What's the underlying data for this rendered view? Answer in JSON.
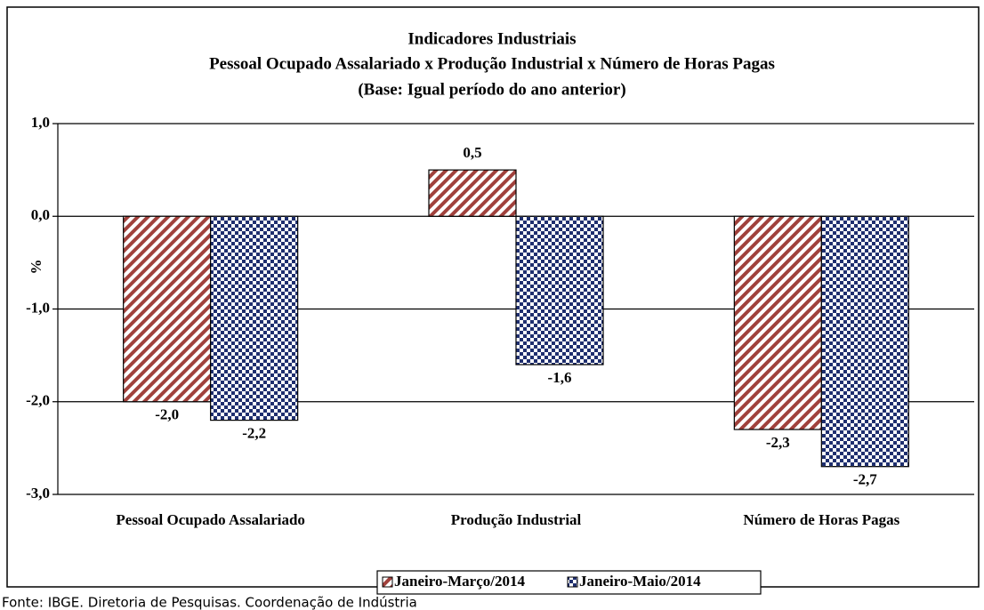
{
  "chart_data": {
    "type": "bar",
    "title": "Indicadores Industriais",
    "subtitle": "Pessoal Ocupado  Assalariado x Produção Industrial x Número de Horas Pagas",
    "subtitle2": "(Base: Igual período do ano anterior)",
    "y_label": "%",
    "categories": [
      "Pessoal Ocupado Assalariado",
      "Produção Industrial",
      "Número de Horas Pagas"
    ],
    "series": [
      {
        "name": "Janeiro-Março/2014",
        "color": "#a0413c",
        "values": [
          -2.0,
          0.5,
          -2.3
        ],
        "value_labels": [
          "-2,0",
          "0,5",
          "-2,3"
        ]
      },
      {
        "name": "Janeiro-Maio/2014",
        "color": "#1f2f6f",
        "values": [
          -2.2,
          -1.6,
          -2.7
        ],
        "value_labels": [
          "-2,2",
          "-1,6",
          "-2,7"
        ]
      }
    ],
    "ylim": [
      -3.0,
      1.0
    ],
    "yticks": [
      {
        "value": -3.0,
        "label": "-3,0"
      },
      {
        "value": -2.0,
        "label": "-2,0"
      },
      {
        "value": -1.0,
        "label": "-1,0"
      },
      {
        "value": 0.0,
        "label": "0,0"
      },
      {
        "value": 1.0,
        "label": "1,0"
      }
    ],
    "grid": true,
    "legend": "bottom"
  },
  "source": "Fonte: IBGE. Diretoria de Pesquisas. Coordenação de Indústria"
}
